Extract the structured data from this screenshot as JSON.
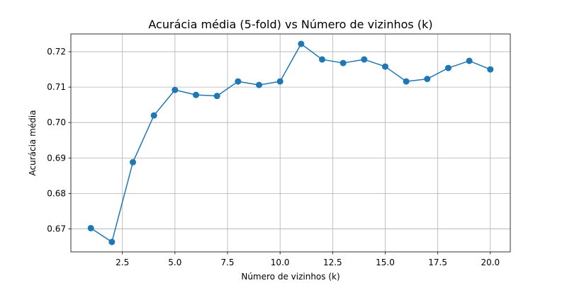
{
  "chart_data": {
    "type": "line",
    "title": "Acurácia média (5-fold) vs Número de vizinhos (k)",
    "xlabel": "Número de vizinhos (k)",
    "ylabel": "Acurácia média",
    "x": [
      1,
      2,
      3,
      4,
      5,
      6,
      7,
      8,
      9,
      10,
      11,
      12,
      13,
      14,
      15,
      16,
      17,
      18,
      19,
      20
    ],
    "series": [
      {
        "values": [
          0.6702,
          0.6663,
          0.6888,
          0.702,
          0.7092,
          0.7078,
          0.7075,
          0.7116,
          0.7106,
          0.7116,
          0.7222,
          0.7178,
          0.7168,
          0.7178,
          0.7158,
          0.7116,
          0.7123,
          0.7154,
          0.7174,
          0.715
        ],
        "color": "#1f77b4",
        "marker": "circle"
      }
    ],
    "xlim": [
      0.05,
      20.95
    ],
    "ylim": [
      0.6635,
      0.725
    ],
    "xticks": [
      2.5,
      5.0,
      7.5,
      10.0,
      12.5,
      15.0,
      17.5,
      20.0
    ],
    "xtick_labels": [
      "2.5",
      "5.0",
      "7.5",
      "10.0",
      "12.5",
      "15.0",
      "17.5",
      "20.0"
    ],
    "yticks": [
      0.67,
      0.68,
      0.69,
      0.7,
      0.71,
      0.72
    ],
    "ytick_labels": [
      "0.67",
      "0.68",
      "0.69",
      "0.70",
      "0.71",
      "0.72"
    ],
    "grid": true
  }
}
